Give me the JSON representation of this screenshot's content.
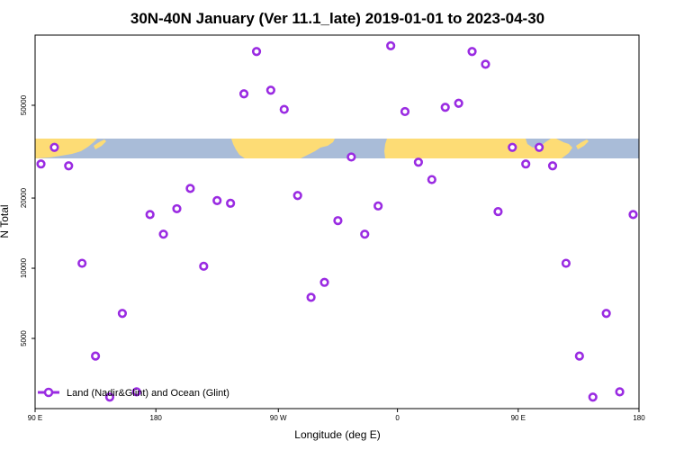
{
  "colors": {
    "marker": "#9a2be2",
    "ocean_band": "#a9bcd8",
    "land_band": "#fddc75",
    "frame": "#000000"
  },
  "chart_data": {
    "type": "scatter",
    "title": "30N-40N January (Ver 11.1_late)   2019-01-01 to 2023-04-30",
    "xlabel": "Longitude (deg E)",
    "ylabel": "N Total",
    "y_scale": "log",
    "xlim": [
      90,
      450
    ],
    "ylim": [
      2500,
      100000
    ],
    "x_ticks": [
      {
        "value": 90,
        "label": "90 E"
      },
      {
        "value": 162,
        "label": "180"
      },
      {
        "value": 235,
        "label": "90 W"
      },
      {
        "value": 306,
        "label": "0"
      },
      {
        "value": 378,
        "label": "90 E"
      },
      {
        "value": 450,
        "label": "180"
      }
    ],
    "y_ticks": [
      {
        "value": 5000,
        "label": "5000"
      },
      {
        "value": 10000,
        "label": "10000"
      },
      {
        "value": 20000,
        "label": "20000"
      },
      {
        "value": 50000,
        "label": "50000"
      }
    ],
    "legend": {
      "position": "bottom-left",
      "label": "Land (Nadir&Glint) and Ocean (Glint)"
    },
    "series": [
      {
        "name": "Land (Nadir&Glint) and Ocean (Glint)",
        "x": [
          93.5,
          101.5,
          110,
          118,
          126,
          134.5,
          142,
          150.5,
          158.5,
          166.5,
          174.5,
          182.5,
          190.5,
          198.5,
          206.5,
          214.5,
          222,
          230.5,
          238.5,
          246.5,
          254.5,
          262.5,
          270.5,
          278.5,
          286.5,
          294.5,
          302,
          310.5,
          318.5,
          326.5,
          334.5,
          342.5,
          350.5,
          358.5,
          366,
          374.5,
          382.5,
          390.5,
          398.5,
          406.5,
          414.5,
          422.5,
          430.5,
          438.5,
          446.5
        ],
        "y": [
          28000,
          33000,
          27500,
          10500,
          4200,
          2800,
          6400,
          2950,
          17000,
          14000,
          18000,
          22000,
          10200,
          19500,
          19000,
          56000,
          85000,
          58000,
          48000,
          20500,
          7500,
          8700,
          16000,
          30000,
          14000,
          18500,
          90000,
          47000,
          28500,
          24000,
          49000,
          51000,
          85000,
          75000,
          17500,
          33000,
          28000,
          33000,
          27500,
          10500,
          4200,
          2800,
          6400,
          2950,
          17000
        ]
      }
    ]
  }
}
